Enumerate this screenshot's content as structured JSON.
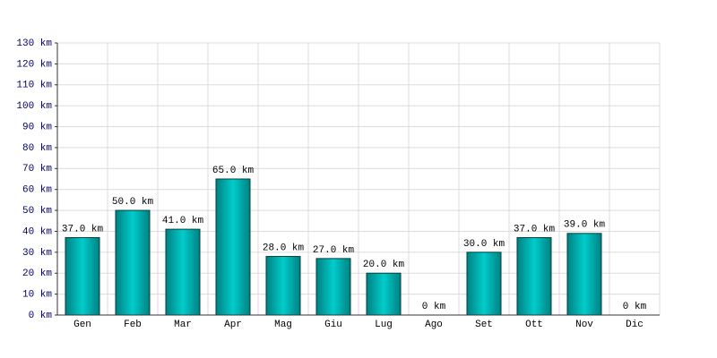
{
  "chart_data": {
    "type": "bar",
    "categories": [
      "Gen",
      "Feb",
      "Mar",
      "Apr",
      "Mag",
      "Giu",
      "Lug",
      "Ago",
      "Set",
      "Ott",
      "Nov",
      "Dic"
    ],
    "values": [
      37,
      50,
      41,
      65,
      28,
      27,
      20,
      0,
      30,
      37,
      39,
      0
    ],
    "value_labels": [
      "37.0 km",
      "50.0 km",
      "41.0 km",
      "65.0 km",
      "28.0 km",
      "27.0 km",
      "20.0 km",
      "0 km",
      "30.0 km",
      "37.0 km",
      "39.0 km",
      "0 km"
    ],
    "color": "#00cccc",
    "ylim": [
      0,
      130
    ],
    "yticks": [
      {
        "value": 0,
        "label": "0 km"
      },
      {
        "value": 10,
        "label": "10 km"
      },
      {
        "value": 20,
        "label": "20 km"
      },
      {
        "value": 30,
        "label": "30 km"
      },
      {
        "value": 40,
        "label": "40 km"
      },
      {
        "value": 50,
        "label": "50 km"
      },
      {
        "value": 60,
        "label": "60 km"
      },
      {
        "value": 70,
        "label": "70 km"
      },
      {
        "value": 80,
        "label": "80 km"
      },
      {
        "value": 90,
        "label": "90 km"
      },
      {
        "value": 100,
        "label": "100 km"
      },
      {
        "value": 110,
        "label": "110 km"
      },
      {
        "value": 120,
        "label": "120 km"
      },
      {
        "value": 130,
        "label": "130 km"
      }
    ],
    "grid": true
  }
}
